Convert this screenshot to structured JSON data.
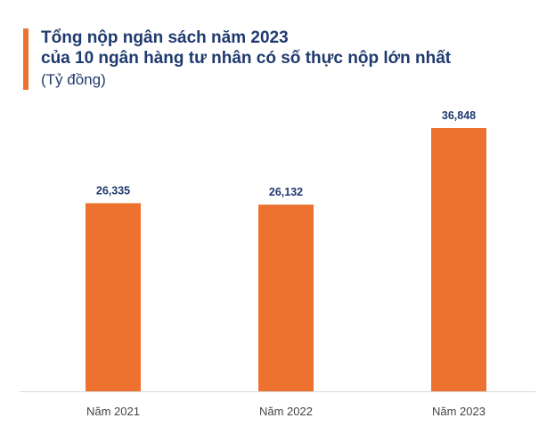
{
  "header": {
    "title_line1": "Tổng nộp ngân sách năm 2023",
    "title_line2": "của 10 ngân hàng tư nhân có số thực nộp lớn nhất",
    "unit": "(Tỷ đồng)"
  },
  "colors": {
    "bar": "#ED7230",
    "title": "#1F3A6E",
    "axis": "#D9D9D9"
  },
  "chart_data": {
    "type": "bar",
    "title": "Tổng nộp ngân sách năm 2023 của 10 ngân hàng tư nhân có số thực nộp lớn nhất",
    "ylabel": "(Tỷ đồng)",
    "categories": [
      "Năm 2021",
      "Năm 2022",
      "Năm 2023"
    ],
    "values": [
      26335,
      26132,
      36848
    ],
    "value_labels": [
      "26,335",
      "26,132",
      "36,848"
    ],
    "ylim": [
      0,
      40000
    ],
    "grid": false,
    "legend": "none"
  }
}
